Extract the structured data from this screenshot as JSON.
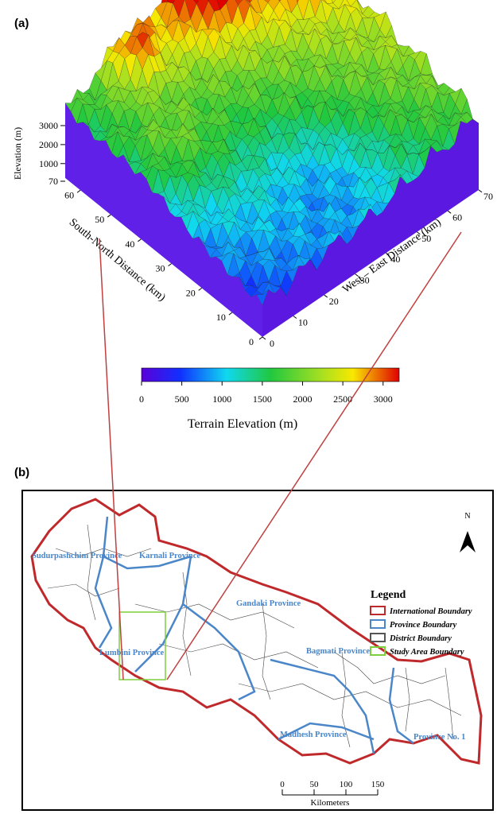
{
  "panel_a": {
    "label": "(a)",
    "z_axis_label": "Elevation (m)",
    "z_ticks": [
      70,
      1000,
      2000,
      3000
    ],
    "z_range": [
      70,
      3000
    ],
    "x_axis_label": "West – East  Distance (km)",
    "x_ticks": [
      0,
      10,
      20,
      30,
      40,
      50,
      60,
      70
    ],
    "x_range": [
      0,
      70
    ],
    "y_axis_label": "South-North Distance (km)",
    "y_ticks": [
      0,
      10,
      20,
      30,
      40,
      50,
      60
    ],
    "y_range": [
      0,
      65
    ],
    "colorbar": {
      "label": "Terrain Elevation (m)",
      "ticks": [
        0,
        500,
        1000,
        1500,
        2000,
        2500,
        3000
      ],
      "range": [
        0,
        3200
      ]
    }
  },
  "panel_b": {
    "label": "(b)",
    "north": "N",
    "legend": {
      "title": "Legend",
      "items": [
        {
          "label": "International Boundary",
          "color": "#c0292b"
        },
        {
          "label": "Province Boundary",
          "color": "#4a86c8"
        },
        {
          "label": "District Boundary",
          "color": "#555555"
        },
        {
          "label": "Study Area Boundary",
          "color": "#7ccf3c"
        }
      ]
    },
    "provinces": [
      "Sudurpashchim Province",
      "Karnali Province",
      "Lumbini Province",
      "Gandaki Province",
      "Bagmati Province",
      "Madhesh Province",
      "Province No. 1"
    ],
    "scale": {
      "ticks": [
        0,
        50,
        100,
        150
      ],
      "unit": "Kilometers"
    }
  }
}
